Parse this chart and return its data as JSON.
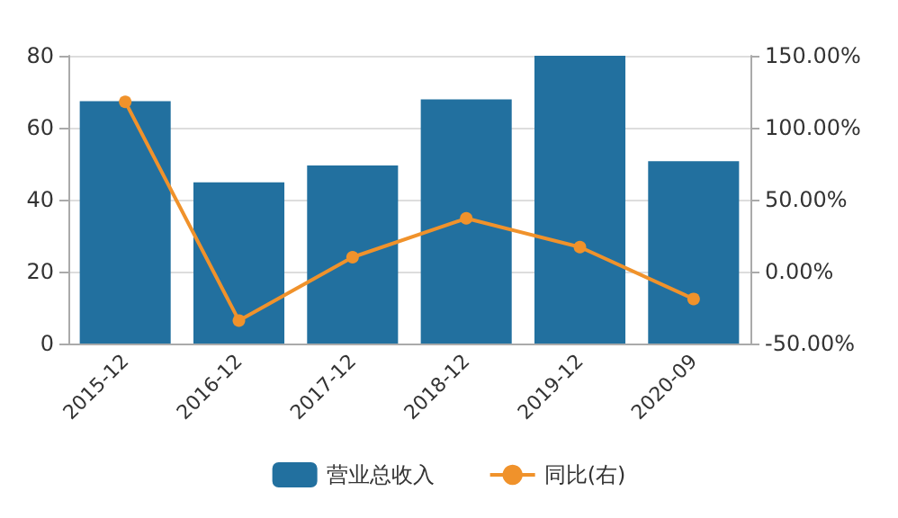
{
  "chart_data": {
    "type": "bar",
    "categories": [
      "2015-12",
      "2016-12",
      "2017-12",
      "2018-12",
      "2019-12",
      "2020-09"
    ],
    "series": [
      {
        "name": "营业总收入",
        "color": "#22709f",
        "values": [
          67.4,
          44.8,
          49.5,
          67.9,
          80,
          50.7
        ]
      },
      {
        "name": "同比(右)",
        "type": "line",
        "axis": "y2",
        "color": "#f0922b",
        "values": [
          118,
          -34,
          10,
          37,
          17,
          -19
        ]
      }
    ],
    "ylim": [
      0,
      80
    ],
    "yticks": [
      0,
      20,
      40,
      60,
      80
    ],
    "y2lim": [
      -50,
      150
    ],
    "y2ticks": [
      {
        "value": -50,
        "label": "-50.00%"
      },
      {
        "value": 0,
        "label": "0.00%"
      },
      {
        "value": 50,
        "label": "50.00%"
      },
      {
        "value": 100,
        "label": "100.00%"
      },
      {
        "value": 150,
        "label": "150.00%"
      }
    ],
    "grid": "y",
    "legend": "bottom",
    "marker": "circle"
  }
}
